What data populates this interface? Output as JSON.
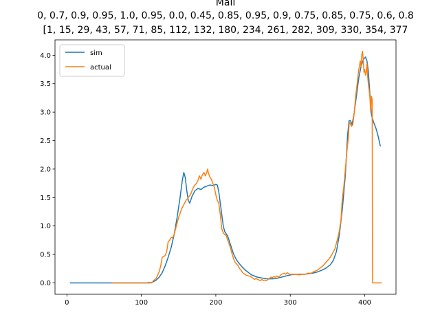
{
  "chart_data": {
    "type": "line",
    "title_lines": [
      "Mall",
      "0, 0.7, 0.9, 0.95, 1.0, 0.95, 0.0, 0.45, 0.85, 0.95, 0.9, 0.75, 0.85, 0.75, 0.6, 0.8",
      "[1, 15, 29, 43, 57, 71, 85, 112, 132, 180, 234, 261, 282, 309, 330, 354, 377"
    ],
    "xlabel": "",
    "ylabel": "",
    "xlim": [
      -16,
      442
    ],
    "ylim": [
      -0.2,
      4.27
    ],
    "xticks": [
      0,
      100,
      200,
      300,
      400
    ],
    "yticks": [
      0.0,
      0.5,
      1.0,
      1.5,
      2.0,
      2.5,
      3.0,
      3.5,
      4.0
    ],
    "ytick_labels": [
      "0.0",
      "0.5",
      "1.0",
      "1.5",
      "2.0",
      "2.5",
      "3.0",
      "3.5",
      "4.0"
    ],
    "legend_position": "upper-left",
    "grid": false,
    "series": [
      {
        "name": "sim",
        "color": "#1f77b4",
        "points": [
          [
            4,
            0.0
          ],
          [
            30,
            0.0
          ],
          [
            60,
            0.0
          ],
          [
            90,
            0.0
          ],
          [
            105,
            0.0
          ],
          [
            112,
            0.0
          ],
          [
            116,
            0.02
          ],
          [
            120,
            0.05
          ],
          [
            124,
            0.1
          ],
          [
            128,
            0.18
          ],
          [
            132,
            0.3
          ],
          [
            136,
            0.45
          ],
          [
            140,
            0.62
          ],
          [
            144,
            0.85
          ],
          [
            148,
            1.15
          ],
          [
            152,
            1.5
          ],
          [
            155,
            1.8
          ],
          [
            157,
            1.94
          ],
          [
            159,
            1.85
          ],
          [
            161,
            1.62
          ],
          [
            163,
            1.45
          ],
          [
            165,
            1.4
          ],
          [
            168,
            1.52
          ],
          [
            172,
            1.62
          ],
          [
            176,
            1.66
          ],
          [
            180,
            1.64
          ],
          [
            184,
            1.68
          ],
          [
            188,
            1.7
          ],
          [
            192,
            1.72
          ],
          [
            196,
            1.71
          ],
          [
            200,
            1.73
          ],
          [
            202,
            1.72
          ],
          [
            204,
            1.6
          ],
          [
            206,
            1.4
          ],
          [
            208,
            1.2
          ],
          [
            210,
            1.0
          ],
          [
            212,
            0.9
          ],
          [
            216,
            0.82
          ],
          [
            220,
            0.66
          ],
          [
            224,
            0.5
          ],
          [
            228,
            0.4
          ],
          [
            232,
            0.33
          ],
          [
            236,
            0.27
          ],
          [
            240,
            0.22
          ],
          [
            244,
            0.18
          ],
          [
            248,
            0.14
          ],
          [
            252,
            0.12
          ],
          [
            256,
            0.1
          ],
          [
            260,
            0.09
          ],
          [
            264,
            0.08
          ],
          [
            270,
            0.07
          ],
          [
            276,
            0.07
          ],
          [
            282,
            0.08
          ],
          [
            288,
            0.1
          ],
          [
            294,
            0.12
          ],
          [
            300,
            0.14
          ],
          [
            306,
            0.15
          ],
          [
            312,
            0.15
          ],
          [
            318,
            0.15
          ],
          [
            324,
            0.16
          ],
          [
            330,
            0.17
          ],
          [
            336,
            0.19
          ],
          [
            342,
            0.22
          ],
          [
            348,
            0.26
          ],
          [
            354,
            0.32
          ],
          [
            358,
            0.4
          ],
          [
            362,
            0.55
          ],
          [
            366,
            0.85
          ],
          [
            370,
            1.3
          ],
          [
            374,
            1.9
          ],
          [
            377,
            2.6
          ],
          [
            379,
            2.85
          ],
          [
            381,
            2.85
          ],
          [
            383,
            2.78
          ],
          [
            386,
            3.0
          ],
          [
            389,
            3.3
          ],
          [
            392,
            3.6
          ],
          [
            395,
            3.8
          ],
          [
            398,
            3.92
          ],
          [
            401,
            3.97
          ],
          [
            403,
            3.9
          ],
          [
            405,
            3.7
          ],
          [
            407,
            3.3
          ],
          [
            409,
            2.95
          ],
          [
            412,
            2.82
          ],
          [
            415,
            2.72
          ],
          [
            418,
            2.58
          ],
          [
            421,
            2.4
          ]
        ]
      },
      {
        "name": "actual",
        "color": "#ff7f0e",
        "points": [
          [
            60,
            0.0
          ],
          [
            80,
            0.0
          ],
          [
            100,
            0.0
          ],
          [
            108,
            0.0
          ],
          [
            110,
            0.01
          ],
          [
            114,
            0.0
          ],
          [
            117,
            0.05
          ],
          [
            120,
            0.08
          ],
          [
            124,
            0.2
          ],
          [
            126,
            0.3
          ],
          [
            128,
            0.45
          ],
          [
            132,
            0.48
          ],
          [
            134,
            0.55
          ],
          [
            136,
            0.72
          ],
          [
            138,
            0.75
          ],
          [
            140,
            0.8
          ],
          [
            142,
            0.79
          ],
          [
            144,
            0.85
          ],
          [
            146,
            0.95
          ],
          [
            148,
            1.05
          ],
          [
            150,
            1.15
          ],
          [
            152,
            1.22
          ],
          [
            154,
            1.3
          ],
          [
            156,
            1.35
          ],
          [
            158,
            1.4
          ],
          [
            160,
            1.45
          ],
          [
            162,
            1.48
          ],
          [
            164,
            1.52
          ],
          [
            166,
            1.55
          ],
          [
            168,
            1.62
          ],
          [
            170,
            1.68
          ],
          [
            172,
            1.72
          ],
          [
            174,
            1.75
          ],
          [
            176,
            1.8
          ],
          [
            178,
            1.88
          ],
          [
            180,
            1.82
          ],
          [
            182,
            1.9
          ],
          [
            184,
            1.94
          ],
          [
            186,
            1.88
          ],
          [
            188,
            1.95
          ],
          [
            189,
            2.0
          ],
          [
            190,
            1.93
          ],
          [
            192,
            1.86
          ],
          [
            194,
            1.82
          ],
          [
            196,
            1.75
          ],
          [
            198,
            1.68
          ],
          [
            200,
            1.55
          ],
          [
            202,
            1.45
          ],
          [
            204,
            1.4
          ],
          [
            206,
            1.2
          ],
          [
            208,
            0.95
          ],
          [
            210,
            0.88
          ],
          [
            212,
            0.85
          ],
          [
            214,
            0.83
          ],
          [
            216,
            0.75
          ],
          [
            218,
            0.68
          ],
          [
            220,
            0.6
          ],
          [
            222,
            0.5
          ],
          [
            224,
            0.42
          ],
          [
            226,
            0.36
          ],
          [
            228,
            0.33
          ],
          [
            230,
            0.3
          ],
          [
            232,
            0.25
          ],
          [
            234,
            0.22
          ],
          [
            236,
            0.18
          ],
          [
            238,
            0.16
          ],
          [
            240,
            0.14
          ],
          [
            242,
            0.13
          ],
          [
            244,
            0.12
          ],
          [
            246,
            0.12
          ],
          [
            248,
            0.1
          ],
          [
            250,
            0.08
          ],
          [
            252,
            0.06
          ],
          [
            254,
            0.08
          ],
          [
            256,
            0.06
          ],
          [
            258,
            0.05
          ],
          [
            260,
            0.04
          ],
          [
            262,
            0.06
          ],
          [
            264,
            0.04
          ],
          [
            266,
            0.05
          ],
          [
            268,
            0.04
          ],
          [
            270,
            0.06
          ],
          [
            272,
            0.08
          ],
          [
            274,
            0.1
          ],
          [
            276,
            0.09
          ],
          [
            278,
            0.11
          ],
          [
            280,
            0.1
          ],
          [
            282,
            0.12
          ],
          [
            284,
            0.1
          ],
          [
            286,
            0.12
          ],
          [
            288,
            0.15
          ],
          [
            290,
            0.16
          ],
          [
            292,
            0.17
          ],
          [
            294,
            0.15
          ],
          [
            296,
            0.18
          ],
          [
            298,
            0.16
          ],
          [
            300,
            0.15
          ],
          [
            304,
            0.15
          ],
          [
            308,
            0.15
          ],
          [
            312,
            0.14
          ],
          [
            316,
            0.15
          ],
          [
            320,
            0.15
          ],
          [
            324,
            0.17
          ],
          [
            328,
            0.17
          ],
          [
            332,
            0.2
          ],
          [
            336,
            0.22
          ],
          [
            340,
            0.26
          ],
          [
            344,
            0.3
          ],
          [
            348,
            0.36
          ],
          [
            352,
            0.42
          ],
          [
            356,
            0.5
          ],
          [
            360,
            0.6
          ],
          [
            364,
            0.8
          ],
          [
            366,
            0.92
          ],
          [
            368,
            1.1
          ],
          [
            370,
            1.5
          ],
          [
            372,
            1.7
          ],
          [
            374,
            2.0
          ],
          [
            376,
            2.3
          ],
          [
            378,
            2.55
          ],
          [
            379,
            2.78
          ],
          [
            380,
            2.82
          ],
          [
            382,
            2.75
          ],
          [
            384,
            2.78
          ],
          [
            386,
            3.0
          ],
          [
            388,
            3.3
          ],
          [
            390,
            3.52
          ],
          [
            392,
            3.75
          ],
          [
            393,
            3.82
          ],
          [
            394,
            3.9
          ],
          [
            395,
            3.8
          ],
          [
            396,
            4.0
          ],
          [
            397,
            4.07
          ],
          [
            398,
            3.92
          ],
          [
            399,
            3.7
          ],
          [
            400,
            3.75
          ],
          [
            401,
            3.65
          ],
          [
            402,
            3.7
          ],
          [
            403,
            3.85
          ],
          [
            404,
            3.62
          ],
          [
            405,
            3.48
          ],
          [
            406,
            3.38
          ],
          [
            407,
            3.25
          ],
          [
            408,
            3.0
          ],
          [
            409,
            3.28
          ],
          [
            410,
            3.22
          ],
          [
            410.5,
            0.0
          ],
          [
            416,
            0.0
          ],
          [
            423,
            0.0
          ]
        ]
      }
    ]
  }
}
